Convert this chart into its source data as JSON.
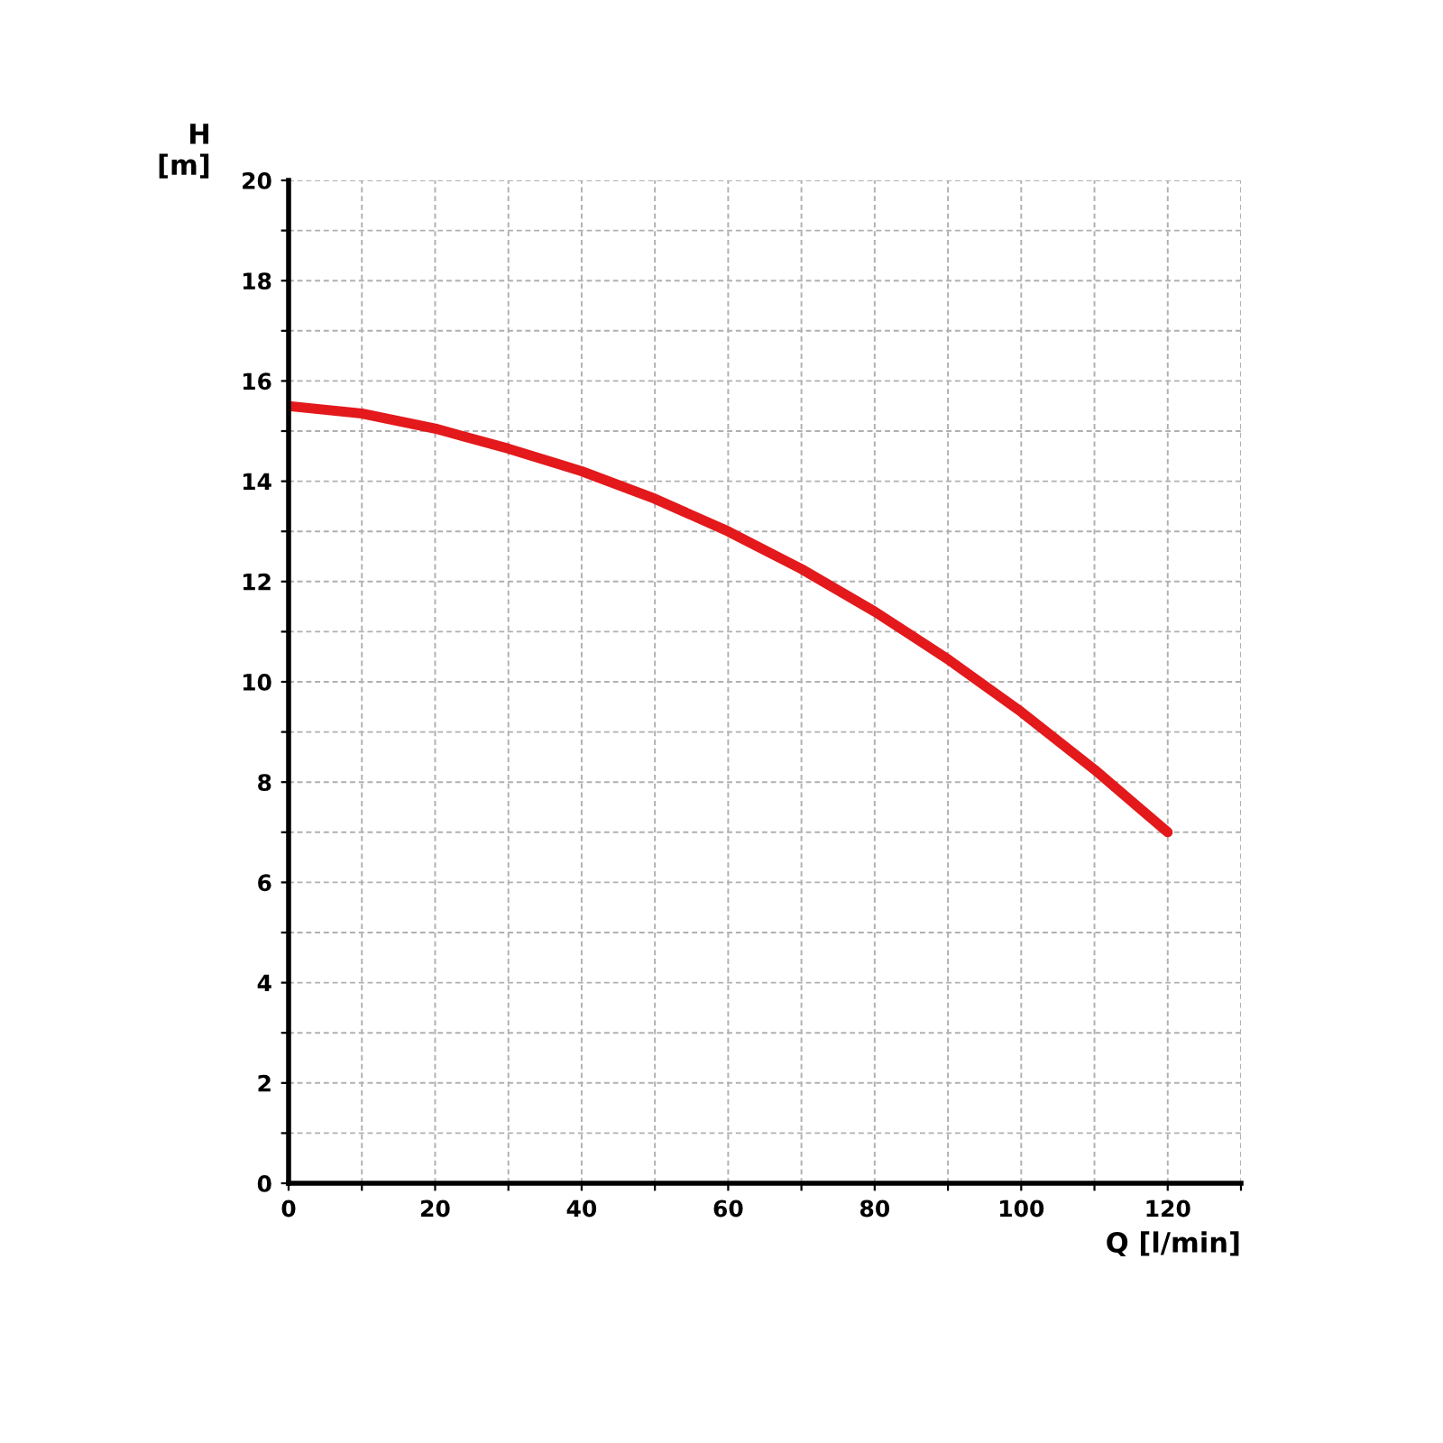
{
  "chart_data": {
    "type": "line",
    "xlabel": "Q [l/min]",
    "ylabel": "H\n[m]",
    "x": [
      0,
      10,
      20,
      30,
      40,
      50,
      60,
      70,
      80,
      90,
      100,
      110,
      120
    ],
    "series": [
      {
        "color": "#e3191c",
        "values": [
          15.5,
          15.35,
          15.05,
          14.65,
          14.2,
          13.65,
          13.0,
          12.25,
          11.4,
          10.45,
          9.4,
          8.25,
          7.0
        ]
      }
    ],
    "xlim": [
      0,
      130
    ],
    "ylim": [
      0,
      20
    ],
    "xticks": [
      0,
      {
        "value": 10,
        "label": null
      },
      20,
      {
        "value": 30,
        "label": null
      },
      40,
      {
        "value": 50,
        "label": null
      },
      60,
      {
        "value": 70,
        "label": null
      },
      80,
      {
        "value": 90,
        "label": null
      },
      100,
      {
        "value": 110,
        "label": null
      },
      120,
      {
        "value": 130,
        "label": null
      }
    ],
    "yticks": [
      0,
      {
        "value": 1,
        "label": null
      },
      2,
      {
        "value": 3,
        "label": null
      },
      4,
      {
        "value": 5,
        "label": null
      },
      6,
      {
        "value": 7,
        "label": null
      },
      8,
      {
        "value": 9,
        "label": null
      },
      10,
      {
        "value": 11,
        "label": null
      },
      12,
      {
        "value": 13,
        "label": null
      },
      14,
      {
        "value": 15,
        "label": null
      },
      16,
      {
        "value": 17,
        "label": null
      },
      18,
      {
        "value": 19,
        "label": null
      },
      20
    ],
    "grid": true,
    "marker": "none",
    "line_style": "solid"
  }
}
